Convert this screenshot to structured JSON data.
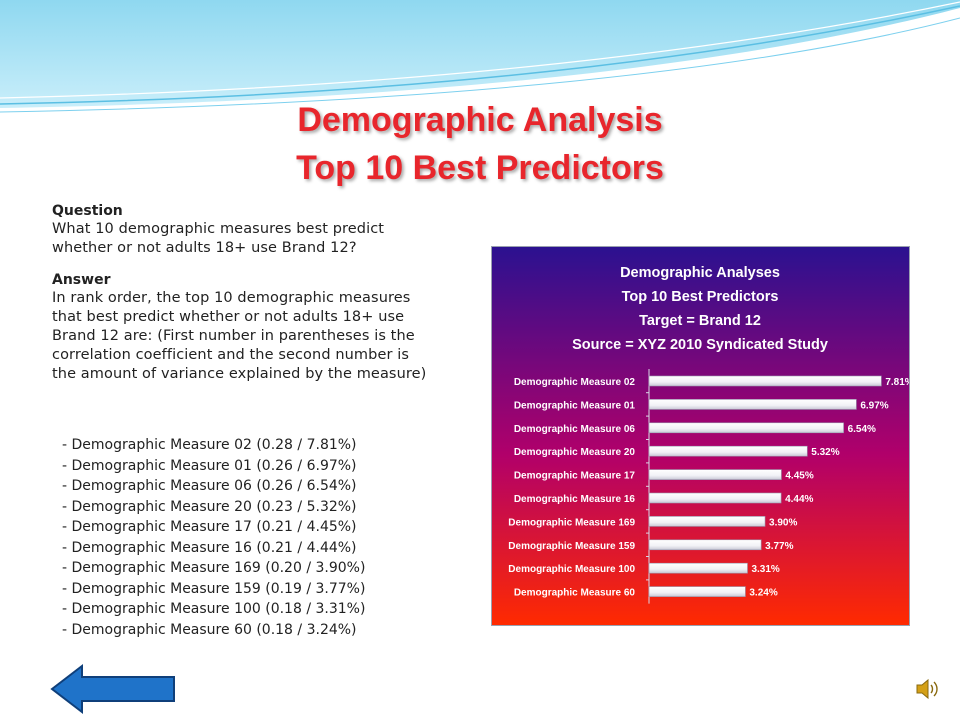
{
  "slide": {
    "title_line1": "Demographic Analysis",
    "title_line2": "Top 10 Best Predictors",
    "question_heading": "Question",
    "question_lines": [
      "What 10 demographic measures best predict",
      "whether or not adults 18+ use Brand 12?"
    ],
    "answer_heading": "Answer",
    "answer_lines": [
      "In rank order, the top 10 demographic measures",
      "that best predict whether or not adults 18+ use",
      "Brand 12 are: (First number in parentheses is the",
      "correlation coefficient and the second number is",
      "the amount of variance explained by the measure)"
    ],
    "predictor_list": [
      "- Demographic Measure 02 (0.28 / 7.81%)",
      "- Demographic Measure 01 (0.26 / 6.97%)",
      "- Demographic Measure 06 (0.26 / 6.54%)",
      "- Demographic Measure 20 (0.23 / 5.32%)",
      "- Demographic Measure 17 (0.21 / 4.45%)",
      "- Demographic Measure 16 (0.21 / 4.44%)",
      "- Demographic Measure 169 (0.20 / 3.90%)",
      "- Demographic Measure 159 (0.19 / 3.77%)",
      "- Demographic Measure 100 (0.18 / 3.31%)",
      "- Demographic Measure 60 (0.18 / 3.24%)"
    ],
    "colors": {
      "title": "#e8262c",
      "chart_top": "#2b1190",
      "chart_mid": "#b1006a",
      "chart_bottom": "#ff2a00",
      "bar_fill": "#ffffff",
      "bar_label": "#ffffff",
      "back_button": "#1f73c9"
    },
    "icons": {
      "back": "left-arrow-icon",
      "audio": "speaker-icon"
    }
  },
  "chart_data": {
    "type": "bar",
    "orientation": "horizontal",
    "title_lines": [
      "Demographic Analyses",
      "Top 10 Best Predictors",
      "Target =  Brand 12",
      "Source = XYZ 2010 Syndicated Study"
    ],
    "categories": [
      "Demographic Measure 02",
      "Demographic Measure 01",
      "Demographic Measure 06",
      "Demographic Measure 20",
      "Demographic Measure 17",
      "Demographic Measure 16",
      "Demographic Measure 169",
      "Demographic Measure 159",
      "Demographic Measure 100",
      "Demographic Measure 60"
    ],
    "values": [
      7.81,
      6.97,
      6.54,
      5.32,
      4.45,
      4.44,
      3.9,
      3.77,
      3.31,
      3.24
    ],
    "value_labels": [
      "7.81%",
      "6.97%",
      "6.54%",
      "5.32%",
      "4.45%",
      "4.44%",
      "3.90%",
      "3.77%",
      "3.31%",
      "3.24%"
    ],
    "xlim": [
      0,
      8
    ],
    "grid": false,
    "legend": "none"
  }
}
